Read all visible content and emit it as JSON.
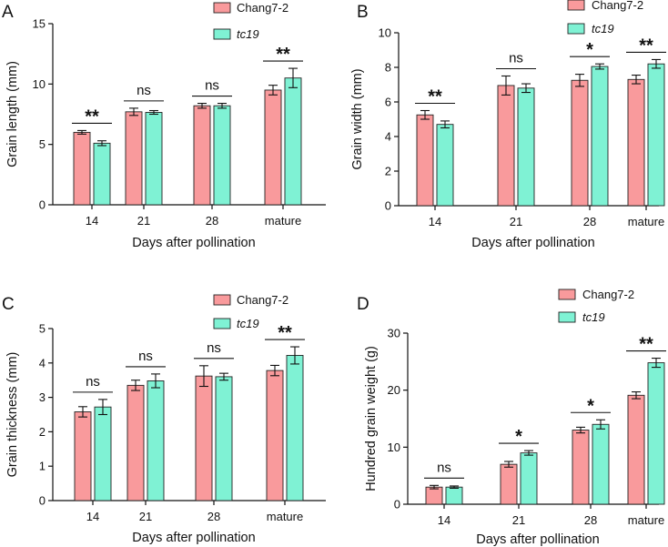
{
  "chart_data": [
    {
      "type": "bar",
      "panel": "A",
      "categories": [
        "14",
        "21",
        "28",
        "mature"
      ],
      "series": [
        {
          "name": "Chang7-2",
          "italic": false,
          "color": "#F99A9C",
          "values": [
            6.0,
            7.7,
            8.2,
            9.5
          ],
          "errors": [
            0.15,
            0.3,
            0.2,
            0.4
          ]
        },
        {
          "name": "tc19",
          "italic": true,
          "color": "#7FF2D4",
          "values": [
            5.1,
            7.65,
            8.2,
            10.5
          ],
          "errors": [
            0.2,
            0.15,
            0.2,
            0.8
          ]
        }
      ],
      "significance": [
        "**",
        "ns",
        "ns",
        "**"
      ],
      "xlabel": "Days after pollination",
      "ylabel": "Grain length (mm)",
      "ylim": [
        0,
        15
      ],
      "yticks": [
        "0",
        "5",
        "10",
        "15"
      ],
      "legend_position": "top-right"
    },
    {
      "type": "bar",
      "panel": "B",
      "categories": [
        "14",
        "21",
        "28",
        "mature"
      ],
      "series": [
        {
          "name": "Chang7-2",
          "italic": false,
          "color": "#F99A9C",
          "values": [
            5.25,
            6.95,
            7.25,
            7.3
          ],
          "errors": [
            0.25,
            0.55,
            0.35,
            0.25
          ]
        },
        {
          "name": "tc19",
          "italic": true,
          "color": "#7FF2D4",
          "values": [
            4.7,
            6.8,
            8.05,
            8.2
          ],
          "errors": [
            0.2,
            0.25,
            0.15,
            0.25
          ]
        }
      ],
      "significance": [
        "**",
        "ns",
        "*",
        "**"
      ],
      "xlabel": "Days after pollination",
      "ylabel": "Grain width (mm)",
      "ylim": [
        0,
        10
      ],
      "yticks": [
        "0",
        "2",
        "4",
        "6",
        "8",
        "10"
      ],
      "legend_position": "top-right"
    },
    {
      "type": "bar",
      "panel": "C",
      "categories": [
        "14",
        "21",
        "28",
        "mature"
      ],
      "series": [
        {
          "name": "Chang7-2",
          "italic": false,
          "color": "#F99A9C",
          "values": [
            2.58,
            3.35,
            3.62,
            3.78
          ],
          "errors": [
            0.15,
            0.15,
            0.3,
            0.15
          ]
        },
        {
          "name": "tc19",
          "italic": true,
          "color": "#7FF2D4",
          "values": [
            2.72,
            3.48,
            3.6,
            4.22
          ],
          "errors": [
            0.22,
            0.2,
            0.1,
            0.25
          ]
        }
      ],
      "significance": [
        "ns",
        "ns",
        "ns",
        "**"
      ],
      "xlabel": "Days after pollination",
      "ylabel": "Grain thickness (mm)",
      "ylim": [
        0,
        5
      ],
      "yticks": [
        "0",
        "1",
        "2",
        "3",
        "4",
        "5"
      ],
      "legend_position": "top-right"
    },
    {
      "type": "bar",
      "panel": "D",
      "categories": [
        "14",
        "21",
        "28",
        "mature"
      ],
      "series": [
        {
          "name": "Chang7-2",
          "italic": false,
          "color": "#F99A9C",
          "values": [
            3.0,
            7.0,
            13.0,
            19.1
          ],
          "errors": [
            0.3,
            0.5,
            0.5,
            0.6
          ]
        },
        {
          "name": "tc19",
          "italic": true,
          "color": "#7FF2D4",
          "values": [
            3.0,
            9.0,
            14.0,
            24.8
          ],
          "errors": [
            0.2,
            0.4,
            0.8,
            0.8
          ]
        }
      ],
      "significance": [
        "ns",
        "*",
        "*",
        "**"
      ],
      "xlabel": "Days after pollination",
      "ylabel": "Hundred grain weight (g)",
      "ylim": [
        0,
        30
      ],
      "yticks": [
        "0",
        "10",
        "20",
        "30"
      ],
      "legend_position": "top-right"
    }
  ]
}
